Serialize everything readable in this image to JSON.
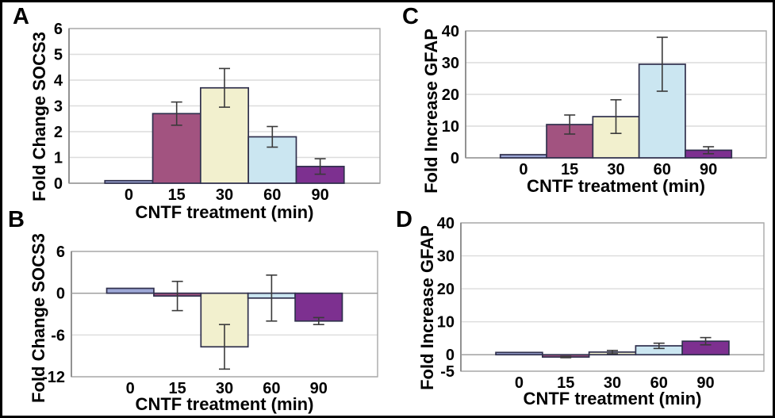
{
  "figure": {
    "background": "#FFFFFF",
    "border_color": "#000000"
  },
  "palette": {
    "bar_colors": [
      "#9DA7D6",
      "#A25380",
      "#F2F0CE",
      "#CBE6F1",
      "#7D3090"
    ],
    "bar_border": "#30304D",
    "gridline": "#DCDCDC",
    "frame": "#A9A9A9",
    "axis": "#808080",
    "error_bar": "#3A3A3A",
    "text": "#000000"
  },
  "chart_data": [
    {
      "panel_label": "A",
      "type": "bar",
      "ylabel": "Fold Change SOCS3",
      "xlabel": "CNTF treatment (min)",
      "categories": [
        "0",
        "15",
        "30",
        "60",
        "90"
      ],
      "values": [
        0.1,
        2.7,
        3.7,
        1.8,
        0.65
      ],
      "errors": [
        0,
        0.45,
        0.75,
        0.4,
        0.3
      ],
      "ylim": [
        0,
        6
      ],
      "yticks": [
        0,
        1,
        2,
        3,
        4,
        5,
        6
      ],
      "grid": true,
      "legend": false
    },
    {
      "panel_label": "B",
      "type": "bar",
      "ylabel": "Fold Change SOCS3",
      "xlabel": "CNTF treatment (min)",
      "categories": [
        "0",
        "15",
        "30",
        "60",
        "90"
      ],
      "values": [
        0.7,
        -0.4,
        -7.7,
        -0.7,
        -4.0
      ],
      "errors": [
        0,
        2.1,
        3.2,
        3.3,
        0.5
      ],
      "ylim": [
        -12,
        6
      ],
      "yticks": [
        -12,
        -6,
        0,
        6
      ],
      "grid": true,
      "legend": false
    },
    {
      "panel_label": "C",
      "type": "bar",
      "ylabel": "Fold Increase GFAP",
      "xlabel": "CNTF treatment (min)",
      "categories": [
        "0",
        "15",
        "30",
        "60",
        "90"
      ],
      "values": [
        1.0,
        10.5,
        13.0,
        29.5,
        2.4
      ],
      "errors": [
        0,
        3.0,
        5.3,
        8.5,
        1.1
      ],
      "ylim": [
        0,
        40
      ],
      "yticks": [
        0,
        10,
        20,
        30,
        40
      ],
      "grid": true,
      "legend": false
    },
    {
      "panel_label": "D",
      "type": "bar",
      "ylabel": "Fold Increase GFAP",
      "xlabel": "CNTF treatment (min)",
      "categories": [
        "0",
        "15",
        "30",
        "60",
        "90"
      ],
      "values": [
        0.7,
        -0.7,
        0.8,
        2.7,
        4.1
      ],
      "errors": [
        0,
        0.2,
        0.5,
        0.8,
        1.1
      ],
      "ylim": [
        -5,
        40
      ],
      "yticks": [
        -5,
        0,
        10,
        20,
        30,
        40
      ],
      "grid": true,
      "legend": false
    }
  ]
}
